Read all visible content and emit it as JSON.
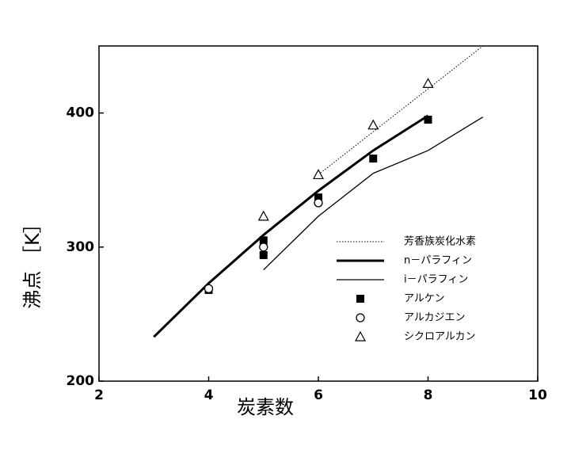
{
  "chart_data": {
    "type": "line",
    "x_label": "炭素数",
    "y_label": "沸点 ［K］",
    "xlim": [
      2,
      10
    ],
    "xticks": [
      2,
      4,
      6,
      8,
      10
    ],
    "ylim": [
      200,
      450
    ],
    "yticks": [
      200,
      300,
      400
    ],
    "grid": false,
    "legend": "lower right",
    "series": [
      {
        "name": "芳香族炭化水素",
        "color": "#000000",
        "style": "dotted",
        "x": [
          6,
          7,
          8,
          9
        ],
        "values": [
          354,
          386,
          418,
          450
        ]
      },
      {
        "name": "n－パラフィン",
        "color": "#000000",
        "style": "thick",
        "x": [
          3,
          4,
          5,
          6,
          7,
          8
        ],
        "values": [
          233,
          273,
          309,
          342,
          372,
          398
        ]
      },
      {
        "name": "i－パラフィン",
        "color": "#000000",
        "style": "thin",
        "x": [
          5,
          6,
          7,
          8,
          9
        ],
        "values": [
          283,
          323,
          355,
          372,
          397
        ]
      },
      {
        "name": "アルケン",
        "color": "#000000",
        "style": "square",
        "x": [
          4,
          5,
          5,
          6,
          7,
          8
        ],
        "values": [
          268,
          305,
          294,
          337,
          366,
          395
        ]
      },
      {
        "name": "アルカジエン",
        "color": "#000000",
        "style": "circle",
        "x": [
          4,
          5,
          6
        ],
        "values": [
          269,
          300,
          333
        ]
      },
      {
        "name": "シクロアルカン",
        "color": "#000000",
        "style": "triangle",
        "x": [
          5,
          6,
          7,
          8
        ],
        "values": [
          323,
          354,
          391,
          422
        ]
      }
    ]
  }
}
